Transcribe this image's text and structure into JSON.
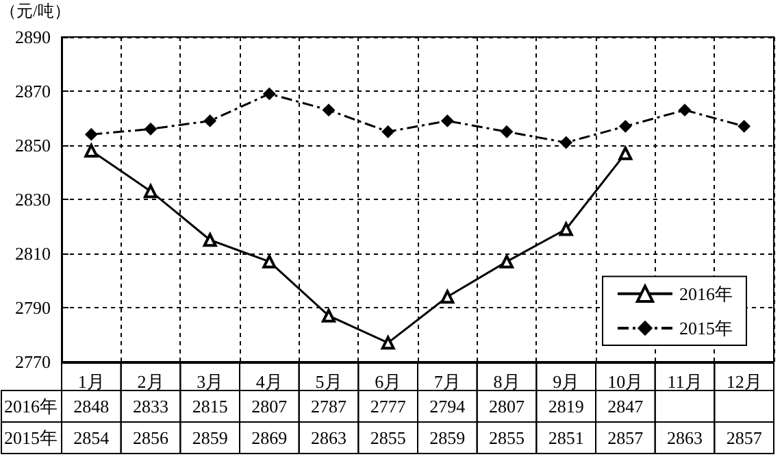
{
  "chart_data": {
    "type": "line",
    "ylabel": "（元/吨）",
    "categories": [
      "1月",
      "2月",
      "3月",
      "4月",
      "5月",
      "6月",
      "7月",
      "8月",
      "9月",
      "10月",
      "11月",
      "12月"
    ],
    "series": [
      {
        "name": "2016年",
        "color": "#000000",
        "marker": "triangle",
        "line_style": "solid",
        "values": [
          2848,
          2833,
          2815,
          2807,
          2787,
          2777,
          2794,
          2807,
          2819,
          2847,
          null,
          null
        ]
      },
      {
        "name": "2015年",
        "color": "#000000",
        "marker": "diamond",
        "line_style": "dashed",
        "values": [
          2854,
          2856,
          2859,
          2869,
          2863,
          2855,
          2859,
          2855,
          2851,
          2857,
          2863,
          2857
        ]
      }
    ],
    "ylim": [
      2770,
      2890
    ],
    "yticks": [
      2770,
      2790,
      2810,
      2830,
      2850,
      2870,
      2890
    ],
    "grid": true,
    "legend": "bottom right",
    "data_labels": true
  }
}
